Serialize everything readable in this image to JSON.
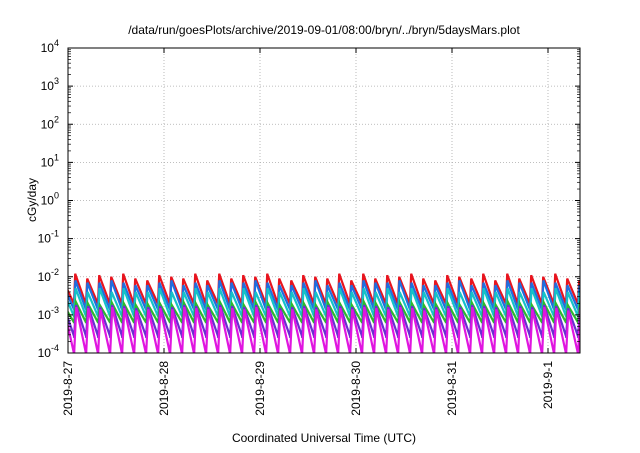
{
  "chart_data": {
    "type": "line",
    "title": "/data/run/goesPlots/archive/2019-09-01/08:00/bryn/../bryn/5daysMars.plot",
    "xlabel": "Coordinated Universal Time (UTC)",
    "ylabel": "cGy/day",
    "y_scale": "log",
    "ylim": [
      0.0001,
      10000
    ],
    "y_ticks": [
      {
        "base": "10",
        "exp": "-4"
      },
      {
        "base": "10",
        "exp": "-3"
      },
      {
        "base": "10",
        "exp": "-2"
      },
      {
        "base": "10",
        "exp": "-1"
      },
      {
        "base": "10",
        "exp": "0"
      },
      {
        "base": "10",
        "exp": "1"
      },
      {
        "base": "10",
        "exp": "2"
      },
      {
        "base": "10",
        "exp": "3"
      },
      {
        "base": "10",
        "exp": "4"
      }
    ],
    "xlim": [
      "2019-08-27 00:00",
      "2019-09-01 08:00"
    ],
    "x_ticks": [
      "2019-8-27",
      "2019-8-28",
      "2019-8-29",
      "2019-8-30",
      "2019-8-31",
      "2019-9-1"
    ],
    "grid": true,
    "legend": "none",
    "pattern_period_hours": 3,
    "series": [
      {
        "color": "#e8141e",
        "peak_values": [
          0.008,
          0.012,
          0.009,
          0.011,
          0.01,
          0.012,
          0.009,
          0.008,
          0.011,
          0.01,
          0.009,
          0.012
        ],
        "trough_value": 0.002
      },
      {
        "color": "#1f6fe0",
        "peak_values": [
          0.006,
          0.008,
          0.007,
          0.007,
          0.008,
          0.007,
          0.006,
          0.006,
          0.007,
          0.008,
          0.006,
          0.007
        ],
        "trough_value": 0.0014
      },
      {
        "color": "#16c2c8",
        "peak_values": [
          0.004,
          0.005,
          0.004,
          0.005,
          0.004,
          0.005,
          0.004,
          0.004,
          0.005,
          0.004,
          0.004,
          0.005
        ],
        "trough_value": 0.0009
      },
      {
        "color": "#2db82d",
        "peak_values": [
          0.0018,
          0.0022,
          0.002,
          0.0018,
          0.0021,
          0.002,
          0.0018,
          0.0019,
          0.002,
          0.0018,
          0.0021,
          0.002
        ],
        "trough_value": 0.0006
      },
      {
        "color": "#6a2fd0",
        "peak_values": [
          0.0016,
          0.0018,
          0.0017,
          0.0016,
          0.0018,
          0.0017,
          0.0015,
          0.0016,
          0.0017,
          0.0016,
          0.0018,
          0.0017
        ],
        "trough_value": 0.00025
      },
      {
        "color": "#e015e0",
        "peak_values": [
          0.0014,
          0.0016,
          0.0015,
          0.0014,
          0.0016,
          0.0015,
          0.0013,
          0.0014,
          0.0015,
          0.0014,
          0.0016,
          0.0015
        ],
        "trough_value": 8e-05
      }
    ]
  }
}
